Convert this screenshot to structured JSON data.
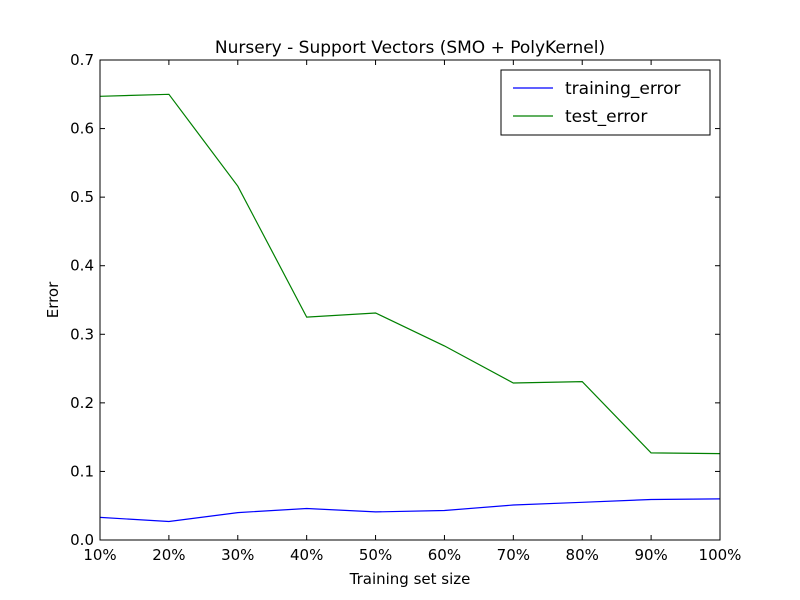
{
  "chart_data": {
    "type": "line",
    "title": "Nursery - Support Vectors (SMO + PolyKernel)",
    "xlabel": "Training set size",
    "ylabel": "Error",
    "categories": [
      "10%",
      "20%",
      "30%",
      "40%",
      "50%",
      "60%",
      "70%",
      "80%",
      "90%",
      "100%"
    ],
    "ylim": [
      0,
      0.7
    ],
    "yticks": [
      "0.0",
      "0.1",
      "0.2",
      "0.3",
      "0.4",
      "0.5",
      "0.6",
      "0.7"
    ],
    "grid": false,
    "legend_position": "top-right",
    "series": [
      {
        "name": "training_error",
        "color": "#0000ff",
        "values": [
          0.033,
          0.027,
          0.04,
          0.046,
          0.041,
          0.043,
          0.051,
          0.055,
          0.059,
          0.06
        ]
      },
      {
        "name": "test_error",
        "color": "#008000",
        "values": [
          0.647,
          0.65,
          0.516,
          0.325,
          0.331,
          0.283,
          0.229,
          0.231,
          0.127,
          0.126
        ]
      }
    ]
  }
}
